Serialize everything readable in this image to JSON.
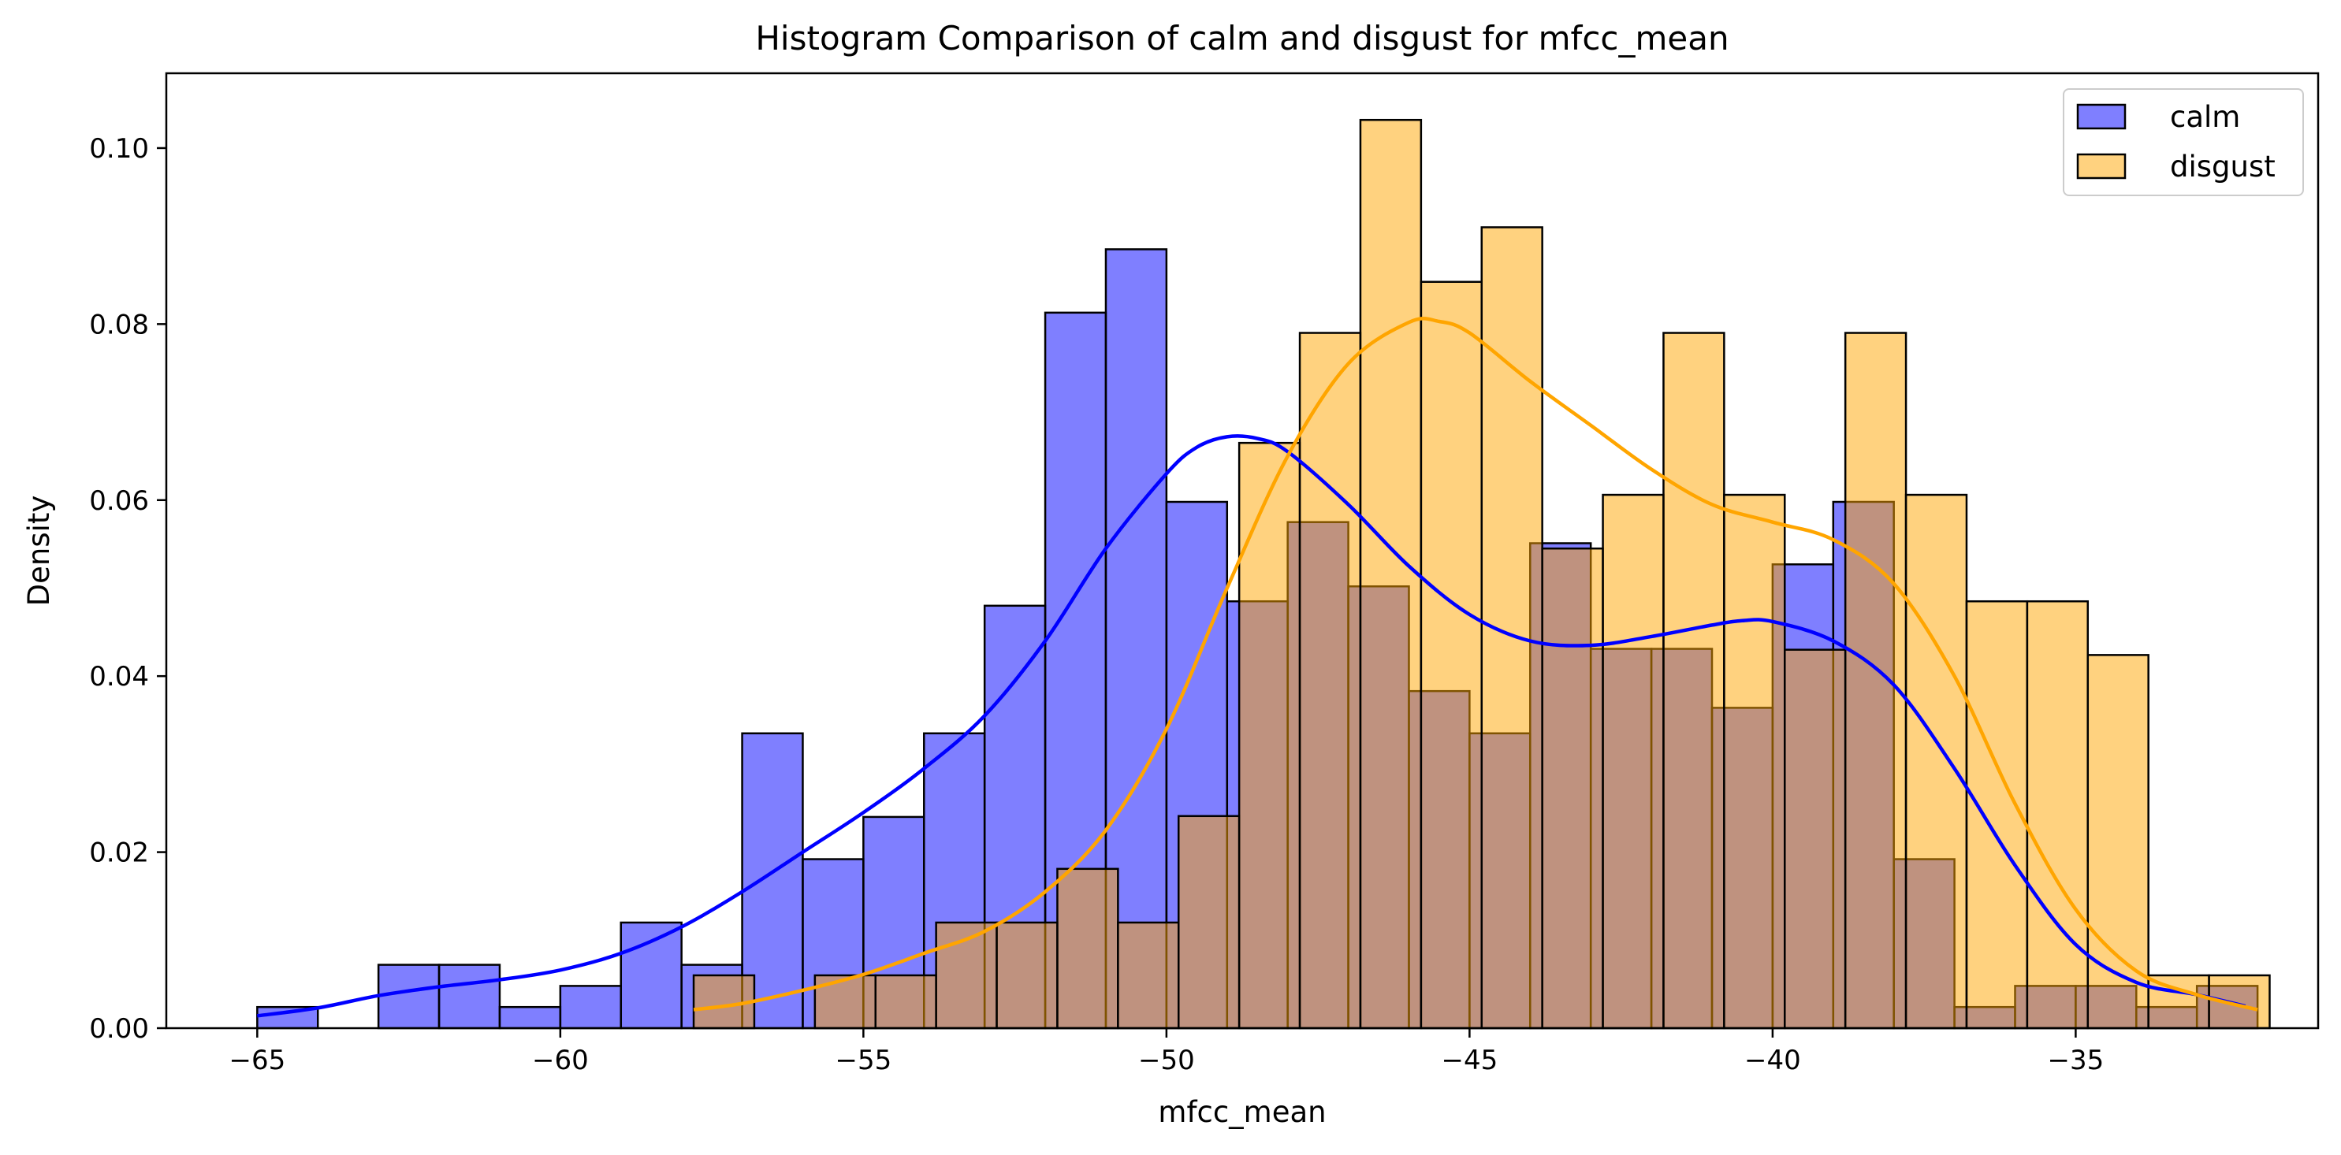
{
  "chart_data": {
    "type": "bar",
    "title": "Histogram Comparison of calm and disgust for mfcc_mean",
    "xlabel": "mfcc_mean",
    "ylabel": "Density",
    "xlim": [
      -66.5,
      -31.0
    ],
    "ylim": [
      0,
      0.1085
    ],
    "grid": false,
    "legend_position": "top-right",
    "x_ticks": [
      -65,
      -60,
      -55,
      -50,
      -45,
      -40,
      -35
    ],
    "x_tick_labels": [
      "−65",
      "−60",
      "−55",
      "−50",
      "−45",
      "−40",
      "−35"
    ],
    "y_ticks": [
      0,
      0.02,
      0.04,
      0.06,
      0.08,
      0.1
    ],
    "y_tick_labels": [
      "0.00",
      "0.02",
      "0.04",
      "0.06",
      "0.08",
      "0.10"
    ],
    "series": [
      {
        "name": "calm",
        "color": "#0000ff",
        "bar_fill": "rgba(0,0,255,0.5)",
        "bins": [
          [
            -65.0,
            -64.0,
            0.0024
          ],
          [
            -64.0,
            -63.0,
            0.0
          ],
          [
            -63.0,
            -62.0,
            0.0072
          ],
          [
            -62.0,
            -61.0,
            0.0072
          ],
          [
            -61.0,
            -60.0,
            0.0024
          ],
          [
            -60.0,
            -59.0,
            0.0048
          ],
          [
            -59.0,
            -58.0,
            0.012
          ],
          [
            -58.0,
            -57.0,
            0.0072
          ],
          [
            -57.0,
            -56.0,
            0.0335
          ],
          [
            -56.0,
            -55.0,
            0.0192
          ],
          [
            -55.0,
            -54.0,
            0.024
          ],
          [
            -54.0,
            -53.0,
            0.0335
          ],
          [
            -53.0,
            -52.0,
            0.048
          ],
          [
            -52.0,
            -51.0,
            0.0813
          ],
          [
            -51.0,
            -50.0,
            0.0885
          ],
          [
            -50.0,
            -49.0,
            0.0598
          ],
          [
            -49.0,
            -48.0,
            0.0485
          ],
          [
            -48.0,
            -47.0,
            0.0575
          ],
          [
            -47.0,
            -46.0,
            0.0502
          ],
          [
            -46.0,
            -45.0,
            0.0383
          ],
          [
            -45.0,
            -44.0,
            0.0335
          ],
          [
            -44.0,
            -43.0,
            0.0551
          ],
          [
            -43.0,
            -42.0,
            0.0431
          ],
          [
            -42.0,
            -41.0,
            0.0431
          ],
          [
            -41.0,
            -40.0,
            0.0364
          ],
          [
            -40.0,
            -39.0,
            0.0527
          ],
          [
            -39.0,
            -38.0,
            0.0598
          ],
          [
            -38.0,
            -37.0,
            0.0192
          ],
          [
            -37.0,
            -36.0,
            0.0024
          ],
          [
            -36.0,
            -35.0,
            0.0048
          ],
          [
            -35.0,
            -34.0,
            0.0048
          ],
          [
            -34.0,
            -33.0,
            0.0024
          ],
          [
            -33.0,
            -32.0,
            0.0048
          ]
        ],
        "kde": {
          "x": [
            -65.0,
            -64.0,
            -63.0,
            -62.0,
            -61.0,
            -60.0,
            -59.0,
            -58.0,
            -57.0,
            -56.0,
            -55.0,
            -54.0,
            -53.0,
            -52.0,
            -51.0,
            -50.0,
            -49.5,
            -49.0,
            -48.5,
            -48.0,
            -47.0,
            -46.0,
            -45.0,
            -44.0,
            -43.0,
            -42.0,
            -41.0,
            -40.5,
            -40.0,
            -39.0,
            -38.0,
            -37.0,
            -36.0,
            -35.0,
            -34.0,
            -33.0,
            -32.2
          ],
          "y": [
            0.0014,
            0.0023,
            0.0037,
            0.0047,
            0.0055,
            0.0066,
            0.0085,
            0.0115,
            0.0155,
            0.02,
            0.0245,
            0.0295,
            0.0355,
            0.044,
            0.0545,
            0.063,
            0.066,
            0.0672,
            0.067,
            0.0655,
            0.0595,
            0.0525,
            0.047,
            0.044,
            0.0435,
            0.0445,
            0.0458,
            0.0463,
            0.0462,
            0.044,
            0.039,
            0.0295,
            0.0185,
            0.0095,
            0.0052,
            0.0038,
            0.0025
          ]
        }
      },
      {
        "name": "disgust",
        "color": "#ffa500",
        "bar_fill": "rgba(255,165,0,0.5)",
        "bins": [
          [
            -57.8,
            -56.8,
            0.006
          ],
          [
            -56.8,
            -55.8,
            0.0
          ],
          [
            -55.8,
            -54.8,
            0.006
          ],
          [
            -54.8,
            -53.8,
            0.006
          ],
          [
            -53.8,
            -52.8,
            0.012
          ],
          [
            -52.8,
            -51.8,
            0.012
          ],
          [
            -51.8,
            -50.8,
            0.0181
          ],
          [
            -50.8,
            -49.8,
            0.012
          ],
          [
            -49.8,
            -48.8,
            0.0241
          ],
          [
            -48.8,
            -47.8,
            0.0665
          ],
          [
            -47.8,
            -46.8,
            0.079
          ],
          [
            -46.8,
            -45.8,
            0.1032
          ],
          [
            -45.8,
            -44.8,
            0.0848
          ],
          [
            -44.8,
            -43.8,
            0.091
          ],
          [
            -43.8,
            -42.8,
            0.0545
          ],
          [
            -42.8,
            -41.8,
            0.0606
          ],
          [
            -41.8,
            -40.8,
            0.079
          ],
          [
            -40.8,
            -39.8,
            0.0606
          ],
          [
            -39.8,
            -38.8,
            0.043
          ],
          [
            -38.8,
            -37.8,
            0.079
          ],
          [
            -37.8,
            -36.8,
            0.0606
          ],
          [
            -36.8,
            -35.8,
            0.0485
          ],
          [
            -35.8,
            -34.8,
            0.0485
          ],
          [
            -34.8,
            -33.8,
            0.0424
          ],
          [
            -33.8,
            -32.8,
            0.006
          ],
          [
            -32.8,
            -31.8,
            0.006
          ]
        ],
        "kde": {
          "x": [
            -57.8,
            -57.0,
            -56.0,
            -55.0,
            -54.0,
            -53.0,
            -52.0,
            -51.0,
            -50.0,
            -49.0,
            -48.0,
            -47.0,
            -46.0,
            -45.5,
            -45.0,
            -44.0,
            -43.0,
            -42.0,
            -41.0,
            -40.0,
            -39.0,
            -38.0,
            -37.0,
            -36.0,
            -35.0,
            -34.0,
            -33.0,
            -32.0
          ],
          "y": [
            0.0021,
            0.0028,
            0.0043,
            0.0061,
            0.0085,
            0.011,
            0.0155,
            0.0225,
            0.034,
            0.05,
            0.065,
            0.0755,
            0.0802,
            0.0803,
            0.079,
            0.0735,
            0.0685,
            0.0635,
            0.0595,
            0.0575,
            0.0555,
            0.0505,
            0.04,
            0.0255,
            0.0135,
            0.0065,
            0.0038,
            0.0021
          ]
        }
      }
    ]
  }
}
